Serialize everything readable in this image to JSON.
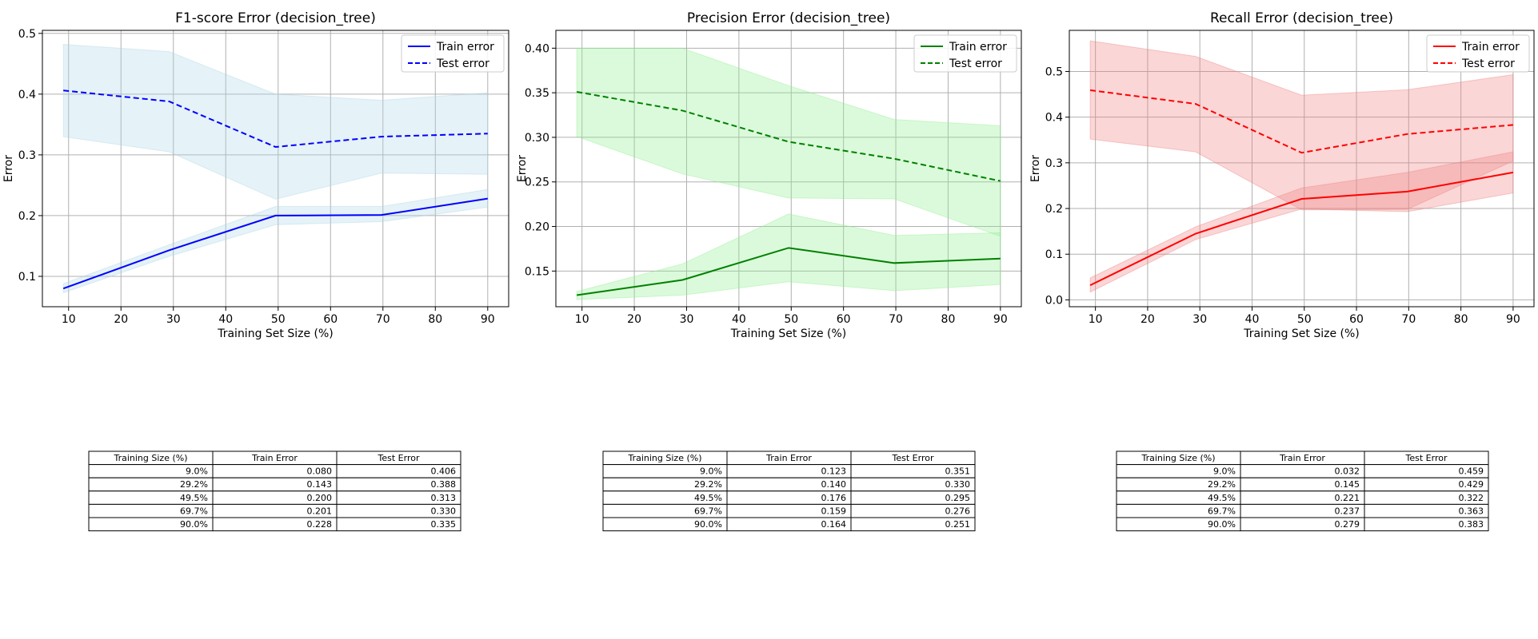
{
  "charts": [
    {
      "title": "F1-score Error (decision_tree)",
      "xlabel": "Training Set Size (%)",
      "ylabel": "Error",
      "color": "#0000ff",
      "band_color": "#add8e6"
    },
    {
      "title": "Precision Error (decision_tree)",
      "xlabel": "Training Set Size (%)",
      "ylabel": "Error",
      "color": "#008000",
      "band_color": "#90ee90"
    },
    {
      "title": "Recall Error (decision_tree)",
      "xlabel": "Training Set Size (%)",
      "ylabel": "Error",
      "color": "#ff0000",
      "band_color": "#f08080"
    }
  ],
  "chart_data": [
    {
      "type": "line",
      "title": "F1-score Error (decision_tree)",
      "xlabel": "Training Set Size (%)",
      "ylabel": "Error",
      "x": [
        9.0,
        29.2,
        49.5,
        69.7,
        90.0
      ],
      "xlim": [
        5,
        94
      ],
      "ylim": [
        0.05,
        0.505
      ],
      "xticks": [
        10,
        20,
        30,
        40,
        50,
        60,
        70,
        80,
        90
      ],
      "yticks": [
        0.1,
        0.2,
        0.3,
        0.4,
        0.5
      ],
      "ytick_labels": [
        "0.1",
        "0.2",
        "0.3",
        "0.4",
        "0.5"
      ],
      "grid": true,
      "legend": "top-right",
      "series": [
        {
          "name": "Train error",
          "style": "solid",
          "values": [
            0.08,
            0.143,
            0.2,
            0.201,
            0.228
          ],
          "band_low": [
            0.073,
            0.133,
            0.185,
            0.19,
            0.214
          ],
          "band_high": [
            0.088,
            0.152,
            0.215,
            0.215,
            0.243
          ]
        },
        {
          "name": "Test error",
          "style": "dashed",
          "values": [
            0.406,
            0.388,
            0.313,
            0.33,
            0.335
          ],
          "band_low": [
            0.33,
            0.305,
            0.227,
            0.27,
            0.268
          ],
          "band_high": [
            0.482,
            0.47,
            0.4,
            0.39,
            0.402
          ]
        }
      ],
      "table": {
        "headers": [
          "Training Size (%)",
          "Train Error",
          "Test Error"
        ],
        "rows": [
          [
            "9.0%",
            "0.080",
            "0.406"
          ],
          [
            "29.2%",
            "0.143",
            "0.388"
          ],
          [
            "49.5%",
            "0.200",
            "0.313"
          ],
          [
            "69.7%",
            "0.201",
            "0.330"
          ],
          [
            "90.0%",
            "0.228",
            "0.335"
          ]
        ]
      }
    },
    {
      "type": "line",
      "title": "Precision Error (decision_tree)",
      "xlabel": "Training Set Size (%)",
      "ylabel": "Error",
      "x": [
        9.0,
        29.2,
        49.5,
        69.7,
        90.0
      ],
      "xlim": [
        5,
        94
      ],
      "ylim": [
        0.11,
        0.42
      ],
      "xticks": [
        10,
        20,
        30,
        40,
        50,
        60,
        70,
        80,
        90
      ],
      "yticks": [
        0.15,
        0.2,
        0.25,
        0.3,
        0.35,
        0.4
      ],
      "ytick_labels": [
        "0.15",
        "0.20",
        "0.25",
        "0.30",
        "0.35",
        "0.40"
      ],
      "grid": true,
      "legend": "top-right",
      "series": [
        {
          "name": "Train error",
          "style": "solid",
          "values": [
            0.123,
            0.14,
            0.176,
            0.159,
            0.164
          ],
          "band_low": [
            0.118,
            0.123,
            0.138,
            0.128,
            0.135
          ],
          "band_high": [
            0.127,
            0.158,
            0.214,
            0.19,
            0.193
          ]
        },
        {
          "name": "Test error",
          "style": "dashed",
          "values": [
            0.351,
            0.33,
            0.295,
            0.276,
            0.251
          ],
          "band_low": [
            0.301,
            0.259,
            0.232,
            0.231,
            0.189
          ],
          "band_high": [
            0.4,
            0.4,
            0.358,
            0.32,
            0.313
          ]
        }
      ],
      "table": {
        "headers": [
          "Training Size (%)",
          "Train Error",
          "Test Error"
        ],
        "rows": [
          [
            "9.0%",
            "0.123",
            "0.351"
          ],
          [
            "29.2%",
            "0.140",
            "0.330"
          ],
          [
            "49.5%",
            "0.176",
            "0.295"
          ],
          [
            "69.7%",
            "0.159",
            "0.276"
          ],
          [
            "90.0%",
            "0.164",
            "0.251"
          ]
        ]
      }
    },
    {
      "type": "line",
      "title": "Recall Error (decision_tree)",
      "xlabel": "Training Set Size (%)",
      "ylabel": "Error",
      "x": [
        9.0,
        29.2,
        49.5,
        69.7,
        90.0
      ],
      "xlim": [
        5,
        94
      ],
      "ylim": [
        -0.015,
        0.59
      ],
      "xticks": [
        10,
        20,
        30,
        40,
        50,
        60,
        70,
        80,
        90
      ],
      "yticks": [
        0.0,
        0.1,
        0.2,
        0.3,
        0.4,
        0.5
      ],
      "ytick_labels": [
        "0.0",
        "0.1",
        "0.2",
        "0.3",
        "0.4",
        "0.5"
      ],
      "grid": true,
      "legend": "top-right",
      "series": [
        {
          "name": "Train error",
          "style": "solid",
          "values": [
            0.032,
            0.145,
            0.221,
            0.237,
            0.279
          ],
          "band_low": [
            0.017,
            0.132,
            0.199,
            0.193,
            0.234
          ],
          "band_high": [
            0.048,
            0.16,
            0.245,
            0.279,
            0.324
          ]
        },
        {
          "name": "Test error",
          "style": "dashed",
          "values": [
            0.459,
            0.429,
            0.322,
            0.363,
            0.383
          ],
          "band_low": [
            0.352,
            0.324,
            0.197,
            0.198,
            0.304
          ],
          "band_high": [
            0.567,
            0.533,
            0.448,
            0.46,
            0.493
          ]
        }
      ],
      "table": {
        "headers": [
          "Training Size (%)",
          "Train Error",
          "Test Error"
        ],
        "rows": [
          [
            "9.0%",
            "0.032",
            "0.459"
          ],
          [
            "29.2%",
            "0.145",
            "0.429"
          ],
          [
            "49.5%",
            "0.221",
            "0.322"
          ],
          [
            "69.7%",
            "0.237",
            "0.363"
          ],
          [
            "90.0%",
            "0.279",
            "0.383"
          ]
        ]
      }
    }
  ]
}
